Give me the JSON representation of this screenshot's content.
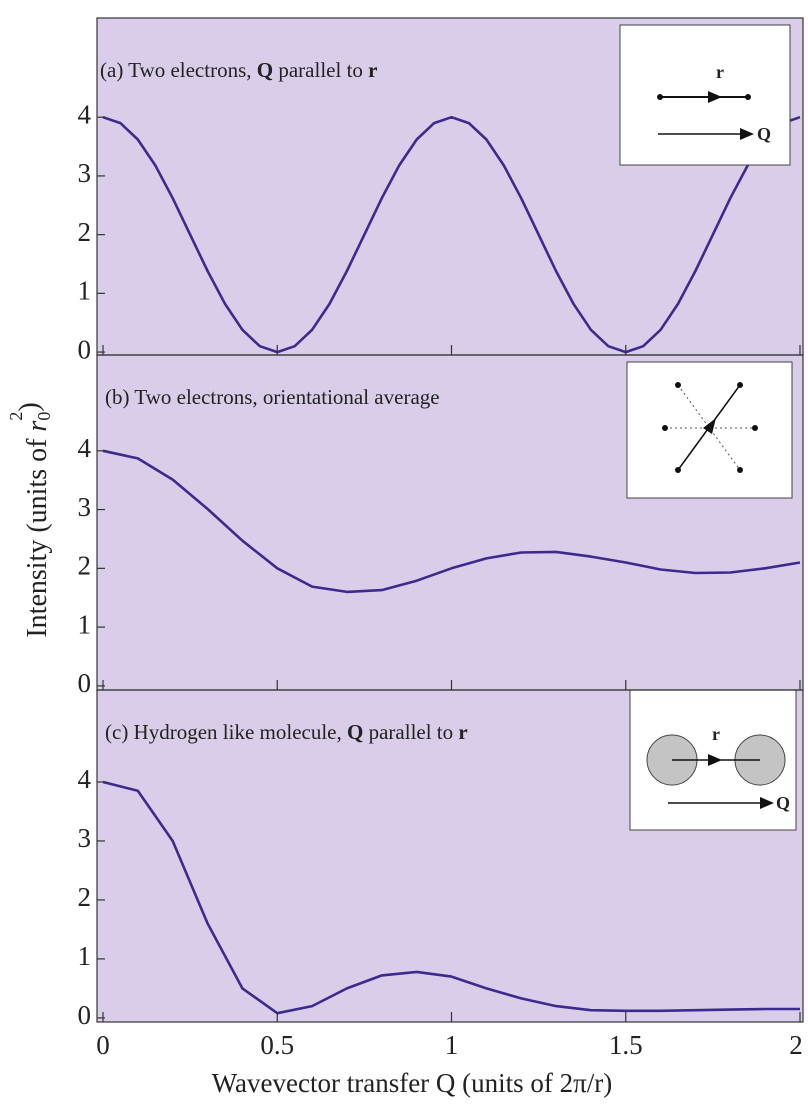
{
  "chart_data": [
    {
      "type": "line",
      "title": [
        "(a) Two electrons, ",
        "Q",
        " parallel to ",
        "r"
      ],
      "title_bold": [
        false,
        true,
        false,
        true
      ],
      "inset_labels": [
        "r",
        "Q"
      ],
      "x": [
        0,
        0.05,
        0.1,
        0.15,
        0.2,
        0.25,
        0.3,
        0.35,
        0.4,
        0.45,
        0.5,
        0.55,
        0.6,
        0.65,
        0.7,
        0.75,
        0.8,
        0.85,
        0.9,
        0.95,
        1,
        1.05,
        1.1,
        1.15,
        1.2,
        1.25,
        1.3,
        1.35,
        1.4,
        1.45,
        1.5,
        1.55,
        1.6,
        1.65,
        1.7,
        1.75,
        1.8,
        1.85,
        1.9,
        1.95,
        2
      ],
      "series": [
        {
          "color": "#3e2a8e",
          "values": [
            4,
            3.9,
            3.62,
            3.18,
            2.62,
            2,
            1.38,
            0.82,
            0.38,
            0.1,
            0,
            0.1,
            0.38,
            0.82,
            1.38,
            2,
            2.62,
            3.18,
            3.62,
            3.9,
            4,
            3.9,
            3.62,
            3.18,
            2.62,
            2,
            1.38,
            0.82,
            0.38,
            0.1,
            0,
            0.1,
            0.38,
            0.82,
            1.38,
            2,
            2.62,
            3.18,
            3.62,
            3.9,
            4
          ]
        }
      ],
      "xlim": [
        0,
        2
      ],
      "ylim": [
        -0.05,
        5.69
      ],
      "yticks": [
        0,
        1,
        2,
        3,
        4
      ]
    },
    {
      "type": "line",
      "title": [
        "(b) Two electrons, orientational average"
      ],
      "title_bold": [
        false
      ],
      "ylabel": {
        "text": "Intensity (units of ",
        "symbol": "r",
        "sub": "0",
        "sup": "2",
        "close": ")"
      },
      "x": [
        0,
        0.1,
        0.2,
        0.3,
        0.4,
        0.5,
        0.6,
        0.7,
        0.8,
        0.9,
        1,
        1.1,
        1.2,
        1.3,
        1.4,
        1.5,
        1.6,
        1.7,
        1.8,
        1.9,
        2
      ],
      "series": [
        {
          "color": "#3e2a8e",
          "values": [
            4,
            3.87,
            3.51,
            3.01,
            2.47,
            2,
            1.69,
            1.6,
            1.63,
            1.79,
            2,
            2.17,
            2.27,
            2.28,
            2.2,
            2.1,
            1.98,
            1.92,
            1.93,
            2,
            2.1
          ]
        }
      ],
      "xlim": [
        0,
        2
      ],
      "ylim": [
        -0.07,
        5.63
      ],
      "yticks": [
        0,
        1,
        2,
        3,
        4
      ]
    },
    {
      "type": "line",
      "title": [
        "(c) Hydrogen like molecule, ",
        "Q",
        " parallel to ",
        "r"
      ],
      "title_bold": [
        false,
        true,
        false,
        true
      ],
      "inset_labels": [
        "r",
        "Q"
      ],
      "xlabel": "Wavevector transfer Q (units of 2π/r)",
      "x": [
        0,
        0.1,
        0.2,
        0.3,
        0.4,
        0.5,
        0.6,
        0.7,
        0.8,
        0.9,
        1,
        1.1,
        1.2,
        1.3,
        1.4,
        1.5,
        1.6,
        1.7,
        1.8,
        1.9,
        2
      ],
      "series": [
        {
          "color": "#3e2a8e",
          "values": [
            4,
            3.85,
            3.0,
            1.6,
            0.5,
            0.08,
            0.2,
            0.5,
            0.72,
            0.78,
            0.7,
            0.5,
            0.33,
            0.2,
            0.13,
            0.12,
            0.12,
            0.13,
            0.14,
            0.15,
            0.15
          ]
        }
      ],
      "xlim": [
        0,
        2
      ],
      "xticks": [
        0,
        0.5,
        1,
        1.5,
        2
      ],
      "ylim": [
        -0.07,
        5.56
      ],
      "yticks": [
        0,
        1,
        2,
        3,
        4
      ]
    }
  ]
}
